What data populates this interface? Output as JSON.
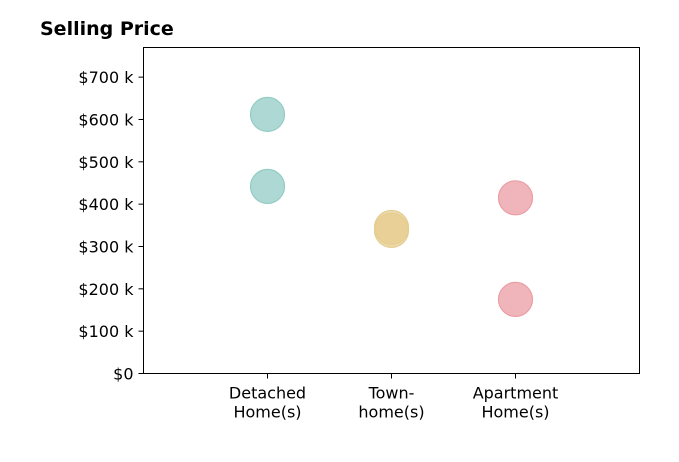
{
  "chart_data": {
    "type": "scatter",
    "title": "Selling Price",
    "xlabel": "",
    "ylabel": "",
    "categories": [
      [
        "Detached",
        "Home(s)"
      ],
      [
        "Town-",
        "home(s)"
      ],
      [
        "Apartment",
        "Home(s)"
      ]
    ],
    "xlim": [
      -1,
      3
    ],
    "ylim": [
      0,
      770000
    ],
    "y_ticks": [
      {
        "value": 0,
        "label": "$0"
      },
      {
        "value": 100000,
        "label": "$100 k"
      },
      {
        "value": 200000,
        "label": "$200 k"
      },
      {
        "value": 300000,
        "label": "$300 k"
      },
      {
        "value": 400000,
        "label": "$400 k"
      },
      {
        "value": 500000,
        "label": "$500 k"
      },
      {
        "value": 600000,
        "label": "$600 k"
      },
      {
        "value": 700000,
        "label": "$700 k"
      }
    ],
    "points": [
      {
        "category": 0,
        "y": 612000,
        "color": "#a8dbd5"
      },
      {
        "category": 0,
        "y": 442000,
        "color": "#a8dbd5"
      },
      {
        "category": 1,
        "y": 345000,
        "color": "#f5dfa8"
      },
      {
        "category": 1,
        "y": 338000,
        "color": "#f5dfa8"
      },
      {
        "category": 2,
        "y": 415000,
        "color": "#f5aeb4"
      },
      {
        "category": 2,
        "y": 175000,
        "color": "#f5aeb4"
      }
    ],
    "point_opacity": 0.75,
    "grid": false,
    "legend": "none"
  }
}
